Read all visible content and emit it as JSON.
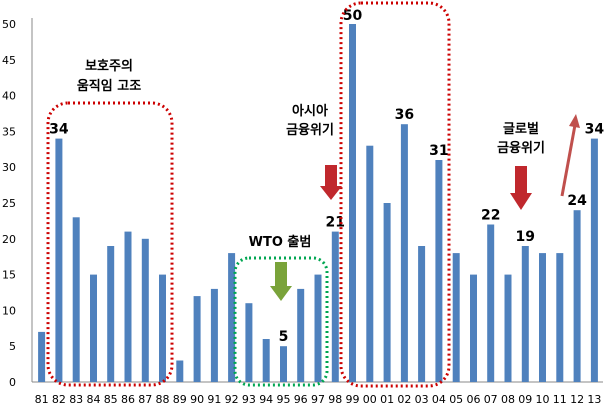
{
  "chart_data": {
    "type": "bar",
    "title": "",
    "xlabel": "",
    "ylabel": "",
    "ylim": [
      0,
      50
    ],
    "yticks": [
      0,
      5,
      10,
      15,
      20,
      25,
      30,
      35,
      40,
      45,
      50
    ],
    "grid": false,
    "bar_color": "#4f81bd",
    "categories": [
      "81",
      "82",
      "83",
      "84",
      "85",
      "86",
      "87",
      "88",
      "89",
      "90",
      "91",
      "92",
      "93",
      "94",
      "95",
      "96",
      "97",
      "98",
      "99",
      "00",
      "01",
      "02",
      "03",
      "04",
      "05",
      "06",
      "07",
      "08",
      "09",
      "10",
      "11",
      "12",
      "13"
    ],
    "values": [
      7,
      34,
      23,
      15,
      19,
      21,
      20,
      15,
      3,
      12,
      13,
      18,
      11,
      6,
      5,
      13,
      15,
      21,
      50,
      33,
      25,
      36,
      19,
      31,
      18,
      15,
      22,
      15,
      19,
      18,
      18,
      24,
      34
    ],
    "data_labels": [
      {
        "category": "82",
        "text": "34"
      },
      {
        "category": "95",
        "text": "5"
      },
      {
        "category": "98",
        "text": "21"
      },
      {
        "category": "99",
        "text": "50"
      },
      {
        "category": "02",
        "text": "36"
      },
      {
        "category": "04",
        "text": "31"
      },
      {
        "category": "07",
        "text": "22"
      },
      {
        "category": "09",
        "text": "19"
      },
      {
        "category": "12",
        "text": "24"
      },
      {
        "category": "13",
        "text": "34"
      }
    ],
    "annotations": [
      {
        "name": "protectionism",
        "lines": [
          "보호주의",
          "움직임 고조"
        ],
        "color": "#cc0000"
      },
      {
        "name": "wto",
        "lines": [
          "WTO 출범"
        ],
        "color": "#00a651"
      },
      {
        "name": "asian-crisis",
        "lines": [
          "아시아",
          "금융위기"
        ],
        "color": "#cc0000"
      },
      {
        "name": "global-crisis",
        "lines": [
          "글로벌",
          "금융위기"
        ],
        "color": "#cc0000"
      }
    ],
    "colors": {
      "red_box": "#cc0000",
      "green_box": "#00a651",
      "red_arrow": "#c0282d",
      "green_arrow": "#7aa33a"
    }
  }
}
